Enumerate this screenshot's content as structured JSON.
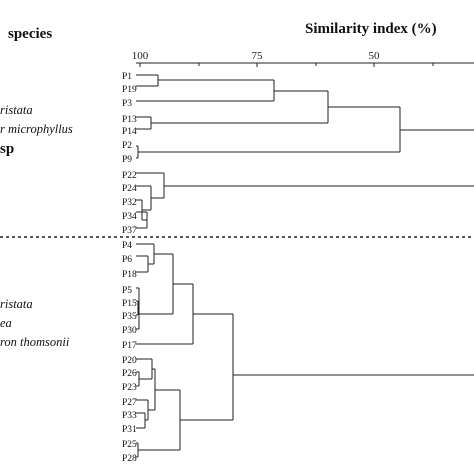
{
  "figure": {
    "species_header": "species",
    "similarity_title": "Similarity index (%)",
    "axis_ticks": [
      "100",
      "75",
      "50"
    ]
  },
  "upper_group": {
    "species_labels": [
      "ristata",
      "r microphyllus",
      "sp"
    ],
    "leaves": [
      "P1",
      "P19",
      "P3",
      "P13",
      "P14",
      "P2",
      "P9",
      "P22",
      "P24",
      "P32",
      "P34",
      "P37"
    ]
  },
  "lower_group": {
    "species_labels": [
      "ristata",
      "ea",
      "ron thomsonii"
    ],
    "leaves": [
      "P4",
      "P6",
      "P18",
      "P5",
      "P15",
      "P35",
      "P30",
      "P17",
      "P20",
      "P26",
      "P23",
      "P27",
      "P33",
      "P31",
      "P25",
      "P28"
    ]
  }
}
